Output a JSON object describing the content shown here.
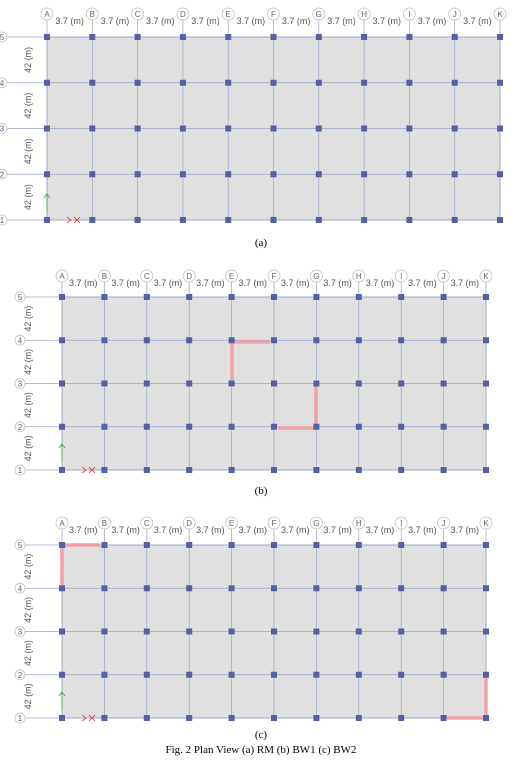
{
  "panels": [
    {
      "columns": [
        "A",
        "B",
        "C",
        "D",
        "E",
        "F",
        "G",
        "H",
        "I",
        "J",
        "K"
      ],
      "rows": [
        "1",
        "2",
        "3",
        "4",
        "5"
      ],
      "x_spans": [
        "3.7 (m)",
        "3.7 (m)",
        "3.7 (m)",
        "3.7 (m)",
        "3.7 (m)",
        "3.7 (m)",
        "3.7 (m)",
        "3.7 (m)",
        "3.7 (m)",
        "3.7 (m)"
      ],
      "y_spans": [
        "42 (m)",
        "42 (m)",
        "42 (m)",
        "42 (m)"
      ],
      "caption": "(a)"
    },
    {
      "columns": [
        "A",
        "B",
        "C",
        "D",
        "E",
        "F",
        "G",
        "H",
        "I",
        "J",
        "K"
      ],
      "rows": [
        "1",
        "2",
        "3",
        "4",
        "5"
      ],
      "x_spans": [
        "3.7 (m)",
        "3.7 (m)",
        "3.7 (m)",
        "3.7 (m)",
        "3.7 (m)",
        "3.7 (m)",
        "3.7 (m)",
        "3.7 (m)",
        "3.7 (m)",
        "3.7 (m)"
      ],
      "y_spans": [
        "42 (m)",
        "42 (m)",
        "42 (m)",
        "42 (m)"
      ],
      "caption": "(b)"
    },
    {
      "columns": [
        "A",
        "B",
        "C",
        "D",
        "E",
        "F",
        "G",
        "H",
        "I",
        "J",
        "K"
      ],
      "rows": [
        "1",
        "2",
        "3",
        "4",
        "5"
      ],
      "x_spans": [
        "3.7 (m)",
        "3.7 (m)",
        "3.7 (m)",
        "3.7 (m)",
        "3.7 (m)",
        "3.7 (m)",
        "3.7 (m)",
        "3.7 (m)",
        "3.7 (m)",
        "3.7 (m)"
      ],
      "y_spans": [
        "42 (m)",
        "42 (m)",
        "42 (m)",
        "42 (m)"
      ],
      "caption": "(c)"
    }
  ],
  "figure_caption": "Fig. 2 Plan View (a) RM (b) BW1 (c) BW2"
}
